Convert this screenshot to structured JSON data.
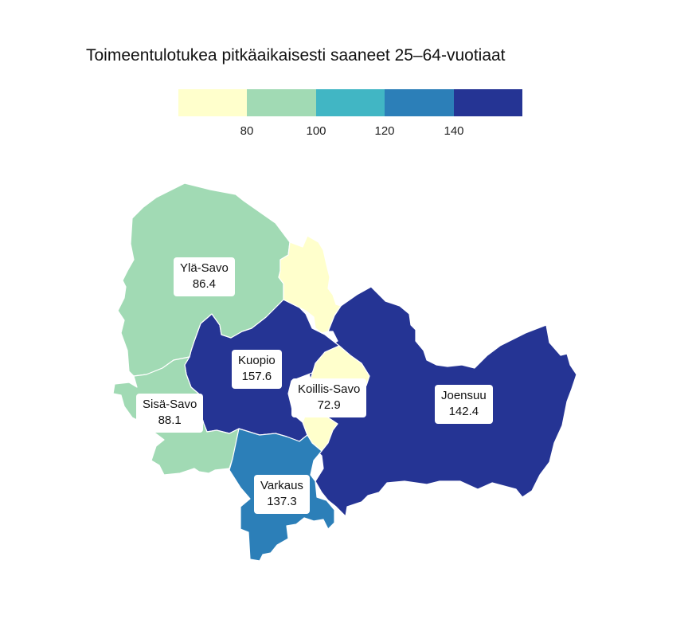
{
  "title": "Toimeentulotukea pitkäaikaisesti saaneet 25–64-vuotiaat",
  "legend": {
    "colors": [
      "#ffffcc",
      "#a1dab4",
      "#41b6c4",
      "#2c7fb8",
      "#253494"
    ],
    "ticks": [
      "80",
      "100",
      "120",
      "140"
    ],
    "breaks": [
      80,
      100,
      120,
      140
    ]
  },
  "regions": [
    {
      "name": "Ylä-Savo",
      "value": "86.4",
      "color": "#a1dab4"
    },
    {
      "name": "Kuopio",
      "value": "157.6",
      "color": "#253494"
    },
    {
      "name": "Koillis-Savo",
      "value": "72.9",
      "color": "#ffffcc"
    },
    {
      "name": "Joensuu",
      "value": "142.4",
      "color": "#253494"
    },
    {
      "name": "Sisä-Savo",
      "value": "88.1",
      "color": "#a1dab4"
    },
    {
      "name": "Varkaus",
      "value": "137.3",
      "color": "#2c7fb8"
    }
  ]
}
